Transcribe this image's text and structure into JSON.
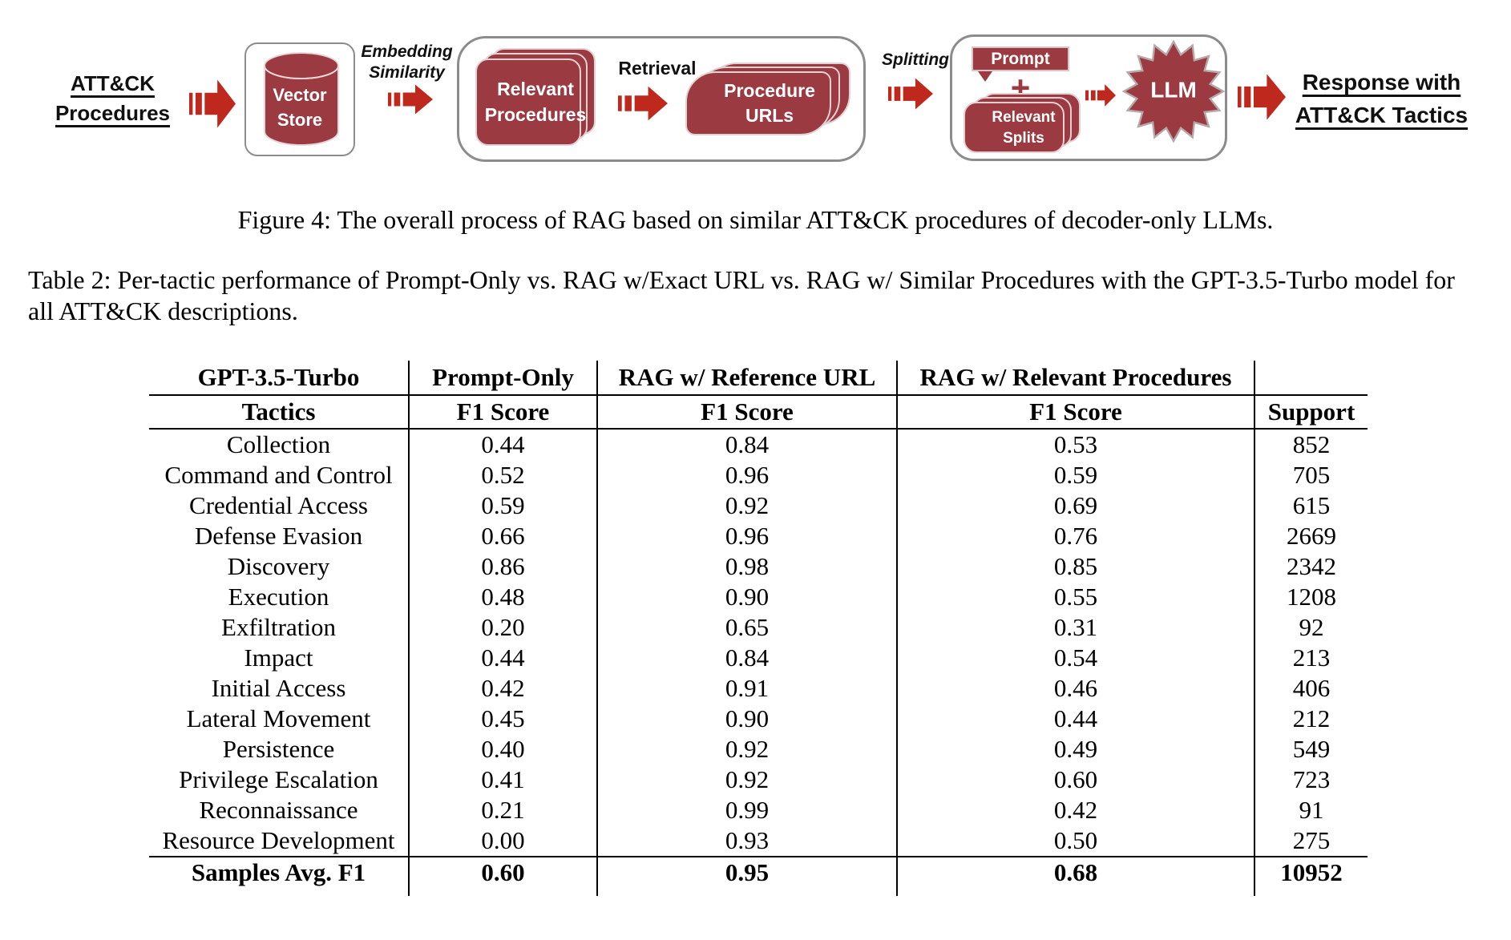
{
  "figure": {
    "caption": "Figure 4: The overall process of RAG based on similar ATT&CK procedures of decoder-only LLMs.",
    "diagram": {
      "input_line1": "ATT&CK",
      "input_line2": "Procedures",
      "vector_store_line1": "Vector",
      "vector_store_line2": "Store",
      "embedding_line1": "Embedding",
      "embedding_line2": "Similarity",
      "relevant_procedures_line1": "Relevant",
      "relevant_procedures_line2": "Procedures",
      "retrieval_label": "Retrieval",
      "procedure_urls_line1": "Procedure",
      "procedure_urls_line2": "URLs",
      "splitting_label": "Splitting",
      "prompt_label": "Prompt",
      "plus_sign": "+",
      "relevant_splits_line1": "Relevant",
      "relevant_splits_line2": "Splits",
      "llm_label": "LLM",
      "output_line1": "Response with",
      "output_line2": "ATT&CK Tactics"
    }
  },
  "table": {
    "caption": "Table 2: Per-tactic performance of Prompt-Only vs. RAG w/Exact URL vs. RAG w/ Similar Procedures with the GPT-3.5-Turbo model for all ATT&CK descriptions.",
    "header_row1": [
      "GPT-3.5-Turbo",
      "Prompt-Only",
      "RAG w/ Reference URL",
      "RAG w/ Relevant Procedures",
      ""
    ],
    "header_row2": [
      "Tactics",
      "F1 Score",
      "F1 Score",
      "F1 Score",
      "Support"
    ],
    "rows": [
      [
        "Collection",
        "0.44",
        "0.84",
        "0.53",
        "852"
      ],
      [
        "Command and Control",
        "0.52",
        "0.96",
        "0.59",
        "705"
      ],
      [
        "Credential Access",
        "0.59",
        "0.92",
        "0.69",
        "615"
      ],
      [
        "Defense Evasion",
        "0.66",
        "0.96",
        "0.76",
        "2669"
      ],
      [
        "Discovery",
        "0.86",
        "0.98",
        "0.85",
        "2342"
      ],
      [
        "Execution",
        "0.48",
        "0.90",
        "0.55",
        "1208"
      ],
      [
        "Exfiltration",
        "0.20",
        "0.65",
        "0.31",
        "92"
      ],
      [
        "Impact",
        "0.44",
        "0.84",
        "0.54",
        "213"
      ],
      [
        "Initial Access",
        "0.42",
        "0.91",
        "0.46",
        "406"
      ],
      [
        "Lateral Movement",
        "0.45",
        "0.90",
        "0.44",
        "212"
      ],
      [
        "Persistence",
        "0.40",
        "0.92",
        "0.49",
        "549"
      ],
      [
        "Privilege Escalation",
        "0.41",
        "0.92",
        "0.60",
        "723"
      ],
      [
        "Reconnaissance",
        "0.21",
        "0.99",
        "0.42",
        "91"
      ],
      [
        "Resource Development",
        "0.00",
        "0.93",
        "0.50",
        "275"
      ]
    ],
    "footer": [
      "Samples Avg. F1",
      "0.60",
      "0.95",
      "0.68",
      "10952"
    ]
  },
  "colors": {
    "maroon": "#9c3a42",
    "arrow_red": "#bf281c",
    "container_border": "#8c8c8c"
  }
}
